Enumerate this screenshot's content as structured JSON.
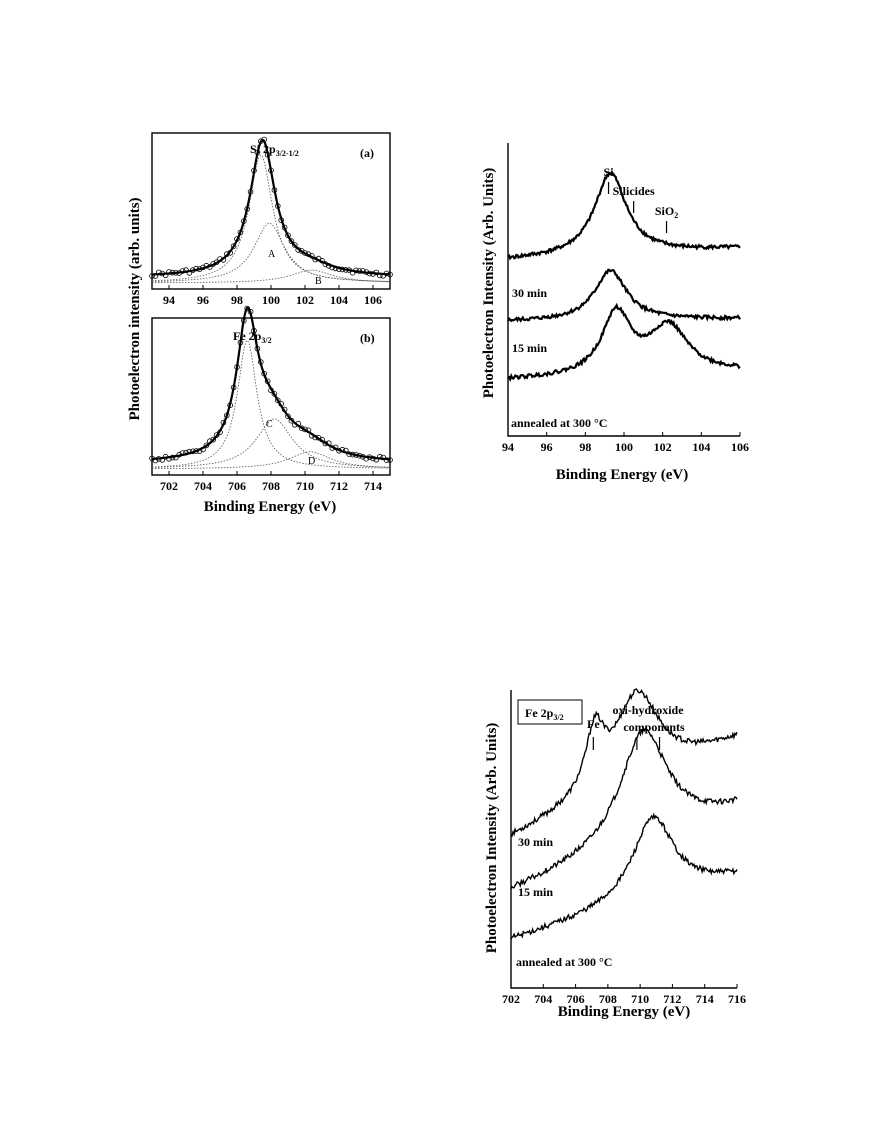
{
  "chart_data": [
    {
      "id": "a",
      "type": "line",
      "panel_label": "(a)",
      "annotation": "Si 2p",
      "annotation_sub": "3/2-1/2",
      "xlim": [
        93,
        107
      ],
      "ylim": [
        0,
        1
      ],
      "xticks": [
        94,
        96,
        98,
        100,
        102,
        104,
        106
      ],
      "component_labels": [
        "A",
        "B"
      ],
      "series": [
        {
          "role": "measured",
          "peaks": [
            [
              99.5,
              0.95,
              0.9
            ],
            [
              102.2,
              0.06,
              1.8
            ]
          ],
          "baseline": 0.04
        },
        {
          "role": "component",
          "peaks": [
            [
              99.4,
              0.9,
              0.85
            ]
          ],
          "baseline": 0.0
        },
        {
          "role": "component",
          "peaks": [
            [
              99.9,
              0.42,
              1.1
            ]
          ],
          "baseline": 0.0
        },
        {
          "role": "component",
          "peaks": [
            [
              102.4,
              0.09,
              1.5
            ]
          ],
          "baseline": 0.0
        }
      ]
    },
    {
      "id": "b",
      "type": "line",
      "panel_label": "(b)",
      "annotation": "Fe 2p",
      "annotation_sub": "3/2",
      "xlim": [
        701,
        715
      ],
      "ylim": [
        0,
        1
      ],
      "xticks": [
        702,
        704,
        706,
        708,
        710,
        712,
        714
      ],
      "component_labels": [
        "C",
        "D"
      ],
      "series": [
        {
          "role": "measured",
          "peaks": [
            [
              706.6,
              0.93,
              0.75
            ],
            [
              708.0,
              0.28,
              1.4
            ],
            [
              710.2,
              0.1,
              1.6
            ]
          ],
          "baseline": 0.04
        },
        {
          "role": "component",
          "peaks": [
            [
              706.6,
              0.9,
              0.7
            ]
          ],
          "baseline": 0.0
        },
        {
          "role": "component",
          "peaks": [
            [
              708.2,
              0.35,
              1.3
            ]
          ],
          "baseline": 0.0
        },
        {
          "role": "component",
          "peaks": [
            [
              710.3,
              0.12,
              1.5
            ]
          ],
          "baseline": 0.0
        }
      ]
    },
    {
      "id": "si",
      "type": "line",
      "xlim": [
        94,
        106
      ],
      "xticks": [
        94,
        96,
        98,
        100,
        102,
        104,
        106
      ],
      "ylim": [
        0,
        1
      ],
      "markers": [
        {
          "label": "Si",
          "x": 99.2
        },
        {
          "label": "Silicides",
          "x": 100.5
        },
        {
          "label": "SiO",
          "label_sub": "2",
          "x": 102.2
        }
      ],
      "series": [
        {
          "name": "30 min",
          "start": 0.6,
          "end": 0.64,
          "peaks": [
            [
              99.3,
              0.28,
              1.0
            ]
          ]
        },
        {
          "name": "15 min",
          "start": 0.39,
          "end": 0.4,
          "peaks": [
            [
              99.3,
              0.17,
              1.0
            ]
          ]
        },
        {
          "name": "annealed at 300 °C",
          "start": 0.19,
          "end": 0.22,
          "peaks": [
            [
              99.6,
              0.21,
              0.9
            ],
            [
              102.3,
              0.16,
              1.2
            ]
          ]
        }
      ]
    },
    {
      "id": "fe",
      "type": "line",
      "xlim": [
        702,
        716
      ],
      "xticks": [
        702,
        704,
        706,
        708,
        710,
        712,
        714,
        716
      ],
      "ylim": [
        0,
        1
      ],
      "legend_box": "Fe 2p",
      "legend_box_sub": "3/2",
      "marker_header": [
        "oxi-hydroxide",
        "components"
      ],
      "markers": [
        {
          "label": "Fe",
          "x": 707.1
        },
        {
          "label": "",
          "x": 709.8
        },
        {
          "label": "",
          "x": 711.2
        }
      ],
      "series": [
        {
          "name": "30 min",
          "start": 0.5,
          "end": 0.83,
          "peaks": [
            [
              707.2,
              0.2,
              0.7
            ],
            [
              709.8,
              0.3,
              1.7
            ]
          ]
        },
        {
          "name": "15 min",
          "start": 0.32,
          "end": 0.6,
          "peaks": [
            [
              710.2,
              0.38,
              1.8
            ]
          ]
        },
        {
          "name": "annealed at 300 °C",
          "start": 0.16,
          "end": 0.37,
          "peaks": [
            [
              710.8,
              0.28,
              1.6
            ]
          ]
        }
      ]
    }
  ],
  "panels": {
    "a_ylabel": "Photoelectron intensity (arb. units)",
    "b_xlabel": "Binding Energy (eV)",
    "si_ylabel": "Photoelectron Intensity (Arb. Units)",
    "si_xlabel": "Binding Energy (eV)",
    "fe_ylabel": "Photoelectron Intensity (Arb. Units)",
    "fe_xlabel": "Binding Energy (eV)"
  }
}
